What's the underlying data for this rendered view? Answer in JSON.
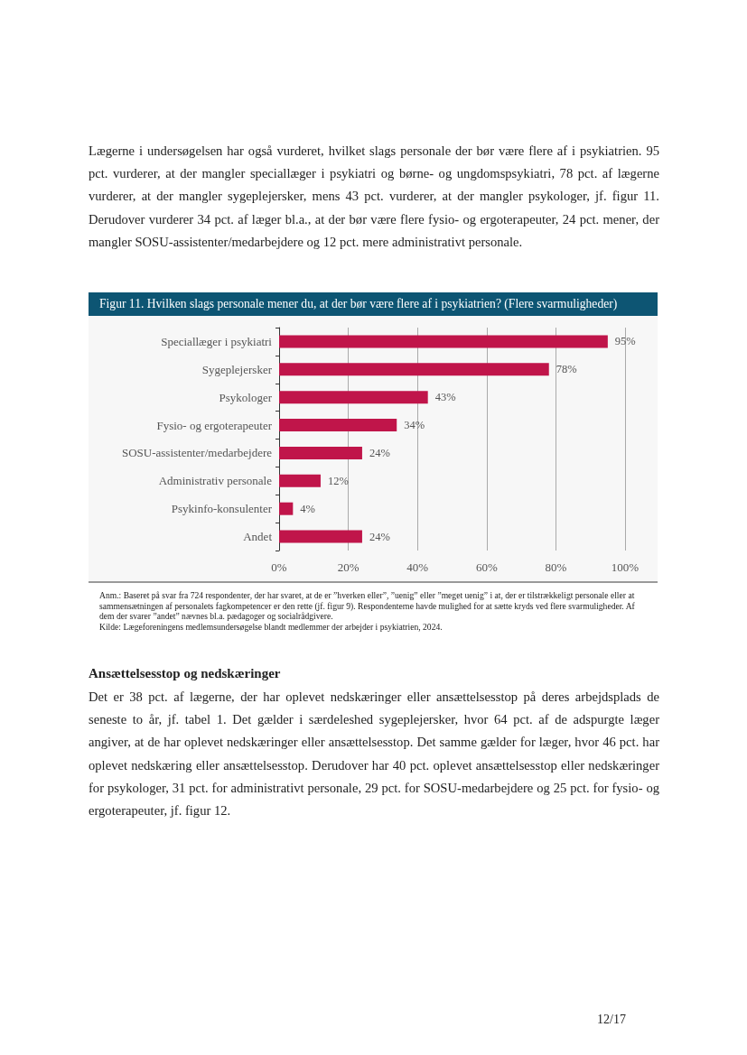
{
  "chart_data": {
    "type": "bar",
    "orientation": "horizontal",
    "title": "Figur 11. Hvilken slags personale mener du, at der bør være flere af i psykiatrien? (Flere svarmuligheder)",
    "categories": [
      "Speciallæger i psykiatri",
      "Sygeplejersker",
      "Psykologer",
      "Fysio- og ergoterapeuter",
      "SOSU-assistenter/medarbejdere",
      "Administrativ personale",
      "Psykinfo-konsulenter",
      "Andet"
    ],
    "values": [
      95,
      78,
      43,
      34,
      24,
      12,
      4,
      24
    ],
    "value_labels": [
      "95%",
      "78%",
      "43%",
      "34%",
      "24%",
      "12%",
      "4%",
      "24%"
    ],
    "color": "#c0154a",
    "xlim": [
      0,
      100
    ],
    "xticks": [
      {
        "value": 0,
        "label": "0%"
      },
      {
        "value": 20,
        "label": "20%"
      },
      {
        "value": 40,
        "label": "40%"
      },
      {
        "value": 60,
        "label": "60%"
      },
      {
        "value": 80,
        "label": "80%"
      },
      {
        "value": 100,
        "label": "100%"
      }
    ],
    "grid": "x",
    "annotations": [
      "Lægerne i undersøgelsen har også vurderet, hvilket slags personale der bør være flere af i psykiatrien. 95 pct. vurderer, at der mangler speciallæger i psykiatri og børne- og ungdomspsykiatri, 78 pct. af lægerne vurderer, at der mangler sygeplejersker, mens 43 pct. vurderer, at der mangler psykologer, jf. figur 11. Derudover vurderer 34 pct. af læger bl.a., at der bør være flere fysio- og ergoterapeuter, 24 pct. mener, der mangler SOSU-assistenter/medarbejdere og 12 pct. mere administrativt personale.",
      "Anm.: Baseret på svar fra 724 respondenter, der har svaret, at de er ”hverken eller”, ”uenig” eller ”meget uenig” i at, der er tilstrækkeligt personale eller at sammensætningen af personalets fagkompetencer er den rette (jf. figur 9). Respondenterne havde mulighed for at sætte kryds ved flere svarmuligheder. Af dem der svarer ”andet” nævnes bl.a. pædagoger og socialrådgivere.",
      "Kilde: Lægeforeningens medlemsundersøgelse blandt medlemmer der arbejder i psykiatrien, 2024.",
      "Ansættelsesstop og nedskæringer",
      "Det er 38 pct. af lægerne, der har oplevet nedskæringer eller ansættelsesstop på deres arbejdsplads de seneste to år, jf. tabel 1. Det gælder i særdeleshed sygeplejersker, hvor 64 pct. af de adspurgte læger angiver, at de har oplevet nedskæringer eller ansættelsesstop. Det samme gælder for læger, hvor 46 pct. har oplevet nedskæring eller ansættelsesstop. Derudover har 40 pct. oplevet ansættelsesstop eller nedskæringer for psykologer, 31 pct. for administrativt personale, 29 pct. for SOSU-medarbejdere og 25 pct. for fysio- og ergoterapeuter, jf. figur 12.",
      "12/17"
    ]
  }
}
